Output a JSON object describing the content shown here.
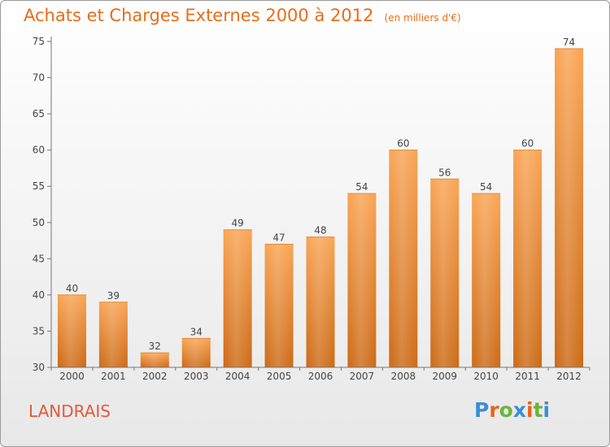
{
  "header": {
    "title": "Achats et Charges Externes 2000 à 2012",
    "subtitle": "(en milliers d'€)"
  },
  "footer": {
    "commune": "LANDRAIS",
    "brand": "Proxiti",
    "brand_colors": [
      "#3a8fd6",
      "#e8621c",
      "#6cb33f",
      "#3a8fd6",
      "#e8621c",
      "#6cb33f",
      "#3a8fd6"
    ]
  },
  "colors": {
    "accent": "#e86d1c",
    "bar_light": "#f9a454",
    "bar_dark": "#cc6a16",
    "commune": "#e05b3d"
  },
  "chart_data": {
    "type": "bar",
    "categories": [
      "2000",
      "2001",
      "2002",
      "2003",
      "2004",
      "2005",
      "2006",
      "2007",
      "2008",
      "2009",
      "2010",
      "2011",
      "2012"
    ],
    "values": [
      40,
      39,
      32,
      34,
      49,
      47,
      48,
      54,
      60,
      56,
      54,
      60,
      74
    ],
    "ylim": [
      30,
      75
    ],
    "yticks": [
      30,
      35,
      40,
      45,
      50,
      55,
      60,
      65,
      70,
      75
    ],
    "grid": false,
    "legend": "none"
  }
}
